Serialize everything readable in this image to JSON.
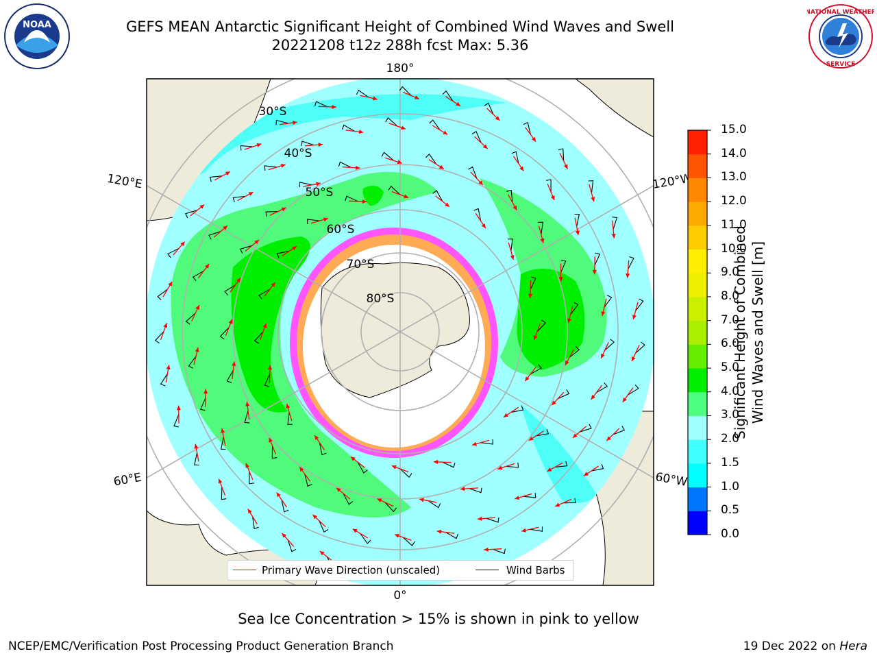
{
  "title": {
    "line1": "GEFS MEAN Antarctic Significant Height of Combined Wind Waves and Swell",
    "line2": "20221208 t12z 288h fcst   Max: 5.36"
  },
  "logos": {
    "left": "NOAA",
    "right": "NATIONAL WEATHER SERVICE"
  },
  "map": {
    "projection": "south-polar-stereographic",
    "longitude_labels": [
      "180°",
      "120°E",
      "120°W",
      "60°E",
      "60°W",
      "0°"
    ],
    "latitude_labels": [
      "30°S",
      "40°S",
      "50°S",
      "60°S",
      "70°S",
      "80°S"
    ],
    "colors": {
      "land": "#eeebda",
      "ocean_0_2": "#a0ffff",
      "ocean_2_3": "#4dfff7",
      "ocean_3_4": "#50fa7a",
      "ocean_4_5": "#00ee00",
      "ice": "#ffffff",
      "ice_edge": "#ff55ff",
      "ice_mid": "#ffaa55",
      "arrow": "#ff0000",
      "barb": "#000000",
      "grid": "#b0b0b0"
    }
  },
  "colorbar": {
    "label_line1": "Significant Height of Combined",
    "label_line2": "Wind Waves and Swell [m]",
    "ticks": [
      "0.0",
      "0.5",
      "1.0",
      "1.5",
      "2.0",
      "3.0",
      "4.0",
      "5.0",
      "6.0",
      "7.0",
      "8.0",
      "9.0",
      "10.0",
      "11.0",
      "12.0",
      "13.0",
      "14.0",
      "15.0"
    ],
    "colors": [
      "#0000ff",
      "#0077ff",
      "#00ffff",
      "#40ffff",
      "#a0ffff",
      "#4dff80",
      "#00ee00",
      "#66ee00",
      "#aaee00",
      "#ccee00",
      "#eeee00",
      "#ffee00",
      "#ffcc00",
      "#ffaa00",
      "#ff8800",
      "#ff5500",
      "#ff2200"
    ]
  },
  "legend": {
    "items": [
      {
        "label": "Primary Wave Direction (unscaled)",
        "color": "#ff0000"
      },
      {
        "label": "Wind Barbs",
        "color": "#000000"
      }
    ]
  },
  "sea_ice_note": "Sea Ice Concentration > 15% is shown in pink to yellow",
  "footer": {
    "left": "NCEP/EMC/Verification Post Processing Product Generation Branch",
    "right_prefix": "19 Dec 2022 on ",
    "right_host": "Hera"
  }
}
